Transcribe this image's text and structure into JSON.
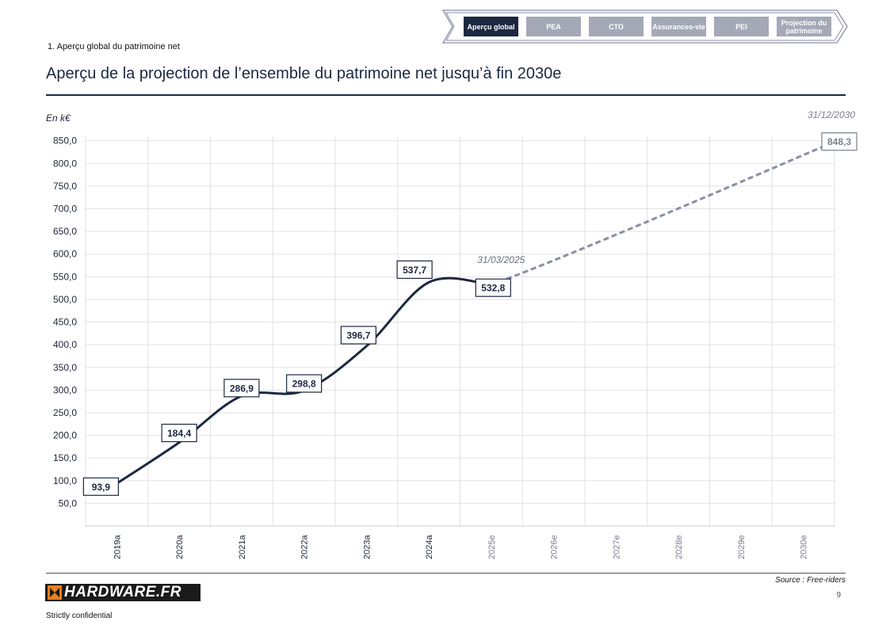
{
  "nav": {
    "tabs": [
      {
        "label": "Aperçu global",
        "active": true
      },
      {
        "label": "PEA",
        "active": false
      },
      {
        "label": "CTO",
        "active": false
      },
      {
        "label": "Assurances-vie",
        "active": false
      },
      {
        "label": "PEI",
        "active": false
      },
      {
        "label": "Projection du patrimoine",
        "active": false
      }
    ]
  },
  "header": {
    "section_label": "1. Aperçu global du patrimoine net",
    "title": "Aperçu de la projection de l’ensemble du patrimoine net jusqu’à fin 2030e"
  },
  "colors": {
    "primary": "#1c2841",
    "projection": "#8a8fa3",
    "tab_inactive": "#a5a8b6",
    "grid": "#e2e2e2"
  },
  "chart_data": {
    "type": "line",
    "unit_label": "En k€",
    "ylim": [
      0,
      850
    ],
    "yticks": [
      "50,0",
      "100,0",
      "150,0",
      "200,0",
      "250,0",
      "300,0",
      "350,0",
      "400,0",
      "450,0",
      "500,0",
      "550,0",
      "600,0",
      "650,0",
      "700,0",
      "750,0",
      "800,0",
      "850,0"
    ],
    "categories": [
      "2019a",
      "2020a",
      "2021a",
      "2022a",
      "2023a",
      "2024a",
      "2025e",
      "2026e",
      "2027e",
      "2028e",
      "2029e",
      "2030e"
    ],
    "actual_categories_count": 6,
    "grid": true,
    "series": [
      {
        "kind": "actual",
        "points": [
          {
            "x": "2019a",
            "y": 93.9,
            "label": "93,9"
          },
          {
            "x": "2020a",
            "y": 184.4,
            "label": "184,4"
          },
          {
            "x": "2021a",
            "y": 286.9,
            "label": "286,9"
          },
          {
            "x": "2022a",
            "y": 298.8,
            "label": "298,8"
          },
          {
            "x": "2023a",
            "y": 396.7,
            "label": "396,7"
          },
          {
            "x": "2024a",
            "y": 537.7,
            "label": "537,7"
          },
          {
            "x": "31/03/2025",
            "y": 532.8,
            "label": "532,8"
          }
        ]
      },
      {
        "kind": "projection",
        "points": [
          {
            "x": "31/03/2025",
            "y": 532.8
          },
          {
            "x": "31/12/2030",
            "y": 848.3,
            "label": "848,3"
          }
        ]
      }
    ],
    "annotations": [
      {
        "text": "31/03/2025",
        "anchor": "current"
      },
      {
        "text": "31/12/2030",
        "anchor": "end"
      }
    ]
  },
  "footer": {
    "source": "Source : Free-riders",
    "page_number": "9",
    "logo_text": "HARDWARE.FR",
    "confidential": "Strictly confidential"
  }
}
